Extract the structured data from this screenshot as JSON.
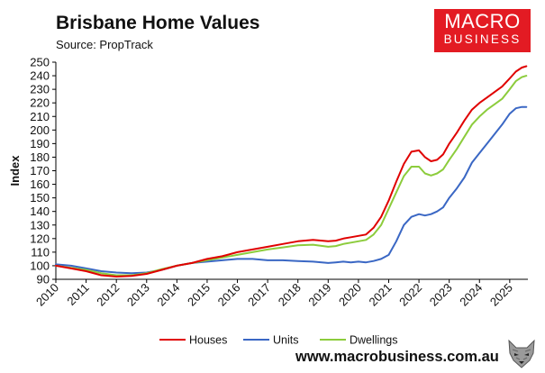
{
  "header": {
    "title": "Brisbane Home Values",
    "subtitle": "Source: PropTrack"
  },
  "logo": {
    "line1": "MACRO",
    "line2": "BUSINESS"
  },
  "footer": {
    "url": "www.macrobusiness.com.au"
  },
  "colors": {
    "houses": "#e00000",
    "units": "#3a67c4",
    "dwellings": "#8ccc3c",
    "brand": "#e31b23"
  },
  "chart_data": {
    "type": "line",
    "title": "Brisbane Home Values",
    "subtitle": "Source: PropTrack",
    "xlabel": "",
    "ylabel": "Index",
    "xlim": [
      2010,
      2025.6
    ],
    "ylim": [
      90,
      250
    ],
    "yticks": [
      90,
      100,
      110,
      120,
      130,
      140,
      150,
      160,
      170,
      180,
      190,
      200,
      210,
      220,
      230,
      240,
      250
    ],
    "xticks": [
      "2010",
      "2011",
      "2012",
      "2013",
      "2014",
      "2015",
      "2016",
      "2017",
      "2018",
      "2019",
      "2020",
      "2021",
      "2022",
      "2023",
      "2024",
      "2025"
    ],
    "grid": false,
    "legend_position": "bottom",
    "x": [
      2010.0,
      2010.5,
      2011.0,
      2011.5,
      2012.0,
      2012.5,
      2013.0,
      2013.5,
      2014.0,
      2014.5,
      2015.0,
      2015.5,
      2016.0,
      2016.5,
      2017.0,
      2017.5,
      2018.0,
      2018.5,
      2019.0,
      2019.25,
      2019.5,
      2019.75,
      2020.0,
      2020.25,
      2020.5,
      2020.75,
      2021.0,
      2021.25,
      2021.5,
      2021.75,
      2022.0,
      2022.2,
      2022.4,
      2022.6,
      2022.8,
      2023.0,
      2023.25,
      2023.5,
      2023.75,
      2024.0,
      2024.25,
      2024.5,
      2024.75,
      2025.0,
      2025.2,
      2025.4,
      2025.55
    ],
    "series": [
      {
        "name": "Houses",
        "color": "#e00000",
        "values": [
          100,
          98,
          96,
          93,
          92,
          92.5,
          94,
          97,
          100,
          102,
          105,
          107,
          110,
          112,
          114,
          116,
          118,
          119,
          118,
          118.5,
          120,
          121,
          122,
          123,
          128,
          136,
          148,
          162,
          175,
          184,
          185,
          180,
          177,
          178,
          182,
          190,
          198,
          207,
          215,
          220,
          224,
          228,
          232,
          238,
          243,
          246,
          247
        ]
      },
      {
        "name": "Units",
        "color": "#3a67c4",
        "values": [
          101,
          100,
          98,
          96,
          95,
          94.5,
          95,
          97,
          100,
          102,
          103,
          104,
          105,
          105,
          104,
          104,
          103.5,
          103,
          102,
          102.5,
          103,
          102.5,
          103,
          102.5,
          103.5,
          105,
          108,
          118,
          130,
          136,
          138,
          137,
          138,
          140,
          143,
          150,
          157,
          165,
          176,
          183,
          190,
          197,
          204,
          212,
          216,
          217,
          217
        ]
      },
      {
        "name": "Dwellings",
        "color": "#8ccc3c",
        "values": [
          100,
          98.5,
          97,
          94.5,
          93,
          93,
          94.5,
          97.5,
          100,
          102,
          104,
          106,
          108,
          110,
          112,
          113.5,
          115,
          115.5,
          114,
          114.5,
          116,
          117,
          118,
          119,
          123,
          130,
          142,
          154,
          166,
          173,
          173,
          168,
          166.5,
          168,
          171,
          178,
          186,
          195,
          204,
          210,
          215,
          219,
          223,
          230,
          236,
          239,
          240
        ]
      }
    ]
  }
}
